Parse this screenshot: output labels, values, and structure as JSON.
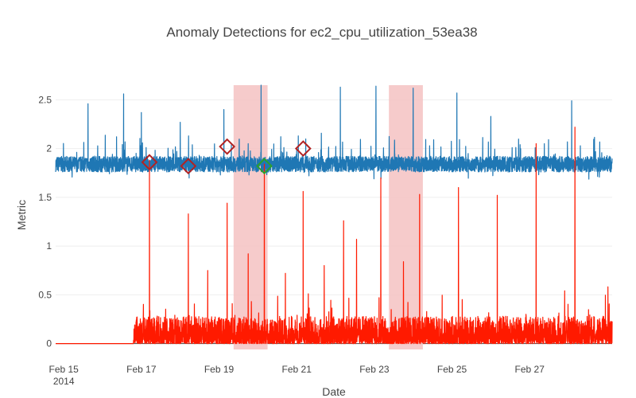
{
  "chart_data": {
    "type": "line",
    "title": "Anomaly Detections for ec2_cpu_utilization_53ea38",
    "xlabel": "Date",
    "ylabel": "Metric",
    "x_range": [
      "2014-02-14T19:00",
      "2014-03-01T03:00"
    ],
    "ylim": [
      -0.06,
      2.65
    ],
    "grid": true,
    "x_ticks": [
      {
        "date": "2014-02-15",
        "label": "Feb 15",
        "sublabel": "2014"
      },
      {
        "date": "2014-02-17",
        "label": "Feb 17"
      },
      {
        "date": "2014-02-19",
        "label": "Feb 19"
      },
      {
        "date": "2014-02-21",
        "label": "Feb 21"
      },
      {
        "date": "2014-02-23",
        "label": "Feb 23"
      },
      {
        "date": "2014-02-25",
        "label": "Feb 25"
      },
      {
        "date": "2014-02-27",
        "label": "Feb 27"
      }
    ],
    "y_ticks": [
      {
        "value": 0,
        "label": "0"
      },
      {
        "value": 0.5,
        "label": "0.5"
      },
      {
        "value": 1,
        "label": "1"
      },
      {
        "value": 1.5,
        "label": "1.5"
      },
      {
        "value": 2,
        "label": "2"
      },
      {
        "value": 2.5,
        "label": "2.5"
      }
    ],
    "series": [
      {
        "role": "metric",
        "color": "#1f77b4",
        "start": "2014-02-14T19:00",
        "end": "2014-03-01T03:00",
        "baseline": 1.84,
        "noise": 0.08,
        "spikes": [
          {
            "date": "2014-02-15T15:00",
            "value": 2.46
          },
          {
            "date": "2014-02-16T13:00",
            "value": 2.56
          },
          {
            "date": "2014-02-17T00:00",
            "value": 2.37
          },
          {
            "date": "2014-02-18T00:00",
            "value": 2.27
          },
          {
            "date": "2014-02-19T03:00",
            "value": 2.4
          },
          {
            "date": "2014-02-20T02:00",
            "value": 2.65
          },
          {
            "date": "2014-02-21T01:00",
            "value": 2.13
          },
          {
            "date": "2014-02-22T03:00",
            "value": 2.63
          },
          {
            "date": "2014-02-23T01:00",
            "value": 2.64
          },
          {
            "date": "2014-02-24T00:00",
            "value": 2.62
          },
          {
            "date": "2014-02-25T03:00",
            "value": 2.57
          },
          {
            "date": "2014-02-26T00:00",
            "value": 2.33
          },
          {
            "date": "2014-02-28T02:00",
            "value": 2.49
          }
        ]
      },
      {
        "role": "anomaly-score",
        "color": "#ff1a00",
        "start": "2014-02-16T19:00",
        "end": "2014-03-01T03:00",
        "flat_before": 0,
        "spikes": [
          {
            "date": "2014-02-17T05:00",
            "value": 1.88
          },
          {
            "date": "2014-02-18T05:00",
            "value": 1.33
          },
          {
            "date": "2014-02-18T17:00",
            "value": 0.75
          },
          {
            "date": "2014-02-19T05:00",
            "value": 1.44
          },
          {
            "date": "2014-02-19T18:00",
            "value": 0.92
          },
          {
            "date": "2014-02-20T04:00",
            "value": 1.84
          },
          {
            "date": "2014-02-20T17:00",
            "value": 0.72
          },
          {
            "date": "2014-02-21T04:00",
            "value": 1.56
          },
          {
            "date": "2014-02-21T17:00",
            "value": 0.8
          },
          {
            "date": "2014-02-22T05:00",
            "value": 1.26
          },
          {
            "date": "2014-02-22T13:00",
            "value": 1.07
          },
          {
            "date": "2014-02-23T04:00",
            "value": 1.7
          },
          {
            "date": "2014-02-23T18:00",
            "value": 0.84
          },
          {
            "date": "2014-02-24T04:00",
            "value": 1.53
          },
          {
            "date": "2014-02-25T04:00",
            "value": 1.6
          },
          {
            "date": "2014-02-26T04:00",
            "value": 1.52
          },
          {
            "date": "2014-02-27T04:00",
            "value": 2.05
          },
          {
            "date": "2014-02-28T04:00",
            "value": 2.22
          }
        ]
      }
    ],
    "anomaly_windows": [
      {
        "start": "2014-02-19T09:00",
        "end": "2014-02-20T06:00",
        "color": "#f4c2c2"
      },
      {
        "start": "2014-02-23T09:00",
        "end": "2014-02-24T06:00",
        "color": "#f4c2c2"
      }
    ],
    "detections": [
      {
        "date": "2014-02-17T05:00",
        "value": 1.86,
        "color": "#b22222"
      },
      {
        "date": "2014-02-18T05:00",
        "value": 1.82,
        "color": "#b22222"
      },
      {
        "date": "2014-02-19T05:00",
        "value": 2.02,
        "color": "#b22222"
      },
      {
        "date": "2014-02-20T04:00",
        "value": 1.82,
        "color": "#2ca02c"
      },
      {
        "date": "2014-02-21T04:00",
        "value": 2.0,
        "color": "#b22222"
      }
    ]
  }
}
